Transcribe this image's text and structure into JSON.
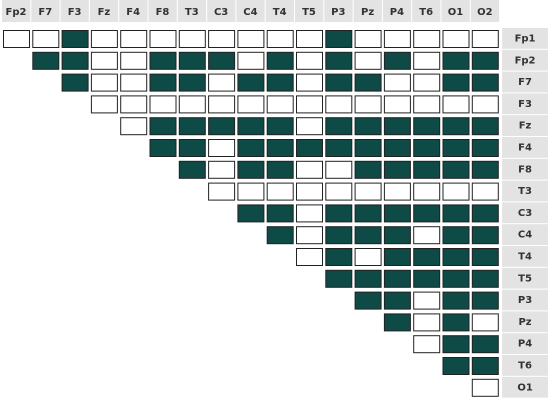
{
  "columns": [
    "Fp2",
    "F7",
    "F3",
    "Fz",
    "F4",
    "F8",
    "T3",
    "C3",
    "C4",
    "T4",
    "T5",
    "P3",
    "Pz",
    "P4",
    "T6",
    "O1",
    "O2"
  ],
  "rows": [
    {
      "label": "Fp1",
      "cells": [
        0,
        0,
        1,
        0,
        0,
        0,
        0,
        0,
        0,
        0,
        0,
        1,
        0,
        0,
        0,
        0,
        0
      ]
    },
    {
      "label": "Fp2",
      "cells": [
        1,
        1,
        0,
        0,
        1,
        1,
        1,
        0,
        1,
        0,
        1,
        0,
        1,
        0,
        1,
        1
      ]
    },
    {
      "label": "F7",
      "cells": [
        1,
        0,
        0,
        1,
        1,
        0,
        1,
        1,
        0,
        1,
        1,
        0,
        0,
        1,
        1
      ]
    },
    {
      "label": "F3",
      "cells": [
        0,
        0,
        0,
        0,
        0,
        0,
        0,
        0,
        0,
        0,
        0,
        0,
        0,
        0
      ]
    },
    {
      "label": "Fz",
      "cells": [
        0,
        1,
        1,
        1,
        1,
        1,
        0,
        1,
        1,
        1,
        1,
        1,
        1
      ]
    },
    {
      "label": "F4",
      "cells": [
        1,
        1,
        0,
        1,
        1,
        1,
        1,
        1,
        1,
        1,
        1,
        1
      ]
    },
    {
      "label": "F8",
      "cells": [
        1,
        0,
        1,
        1,
        0,
        0,
        1,
        1,
        1,
        1,
        1
      ]
    },
    {
      "label": "T3",
      "cells": [
        0,
        0,
        0,
        0,
        0,
        0,
        0,
        0,
        0,
        0
      ]
    },
    {
      "label": "C3",
      "cells": [
        1,
        1,
        0,
        1,
        1,
        1,
        1,
        1,
        1
      ]
    },
    {
      "label": "C4",
      "cells": [
        1,
        0,
        1,
        1,
        1,
        0,
        1,
        1
      ]
    },
    {
      "label": "T4",
      "cells": [
        0,
        1,
        0,
        1,
        1,
        1,
        1
      ]
    },
    {
      "label": "T5",
      "cells": [
        1,
        1,
        1,
        1,
        1,
        1
      ]
    },
    {
      "label": "P3",
      "cells": [
        1,
        1,
        0,
        1,
        1
      ]
    },
    {
      "label": "Pz",
      "cells": [
        1,
        0,
        1,
        0
      ]
    },
    {
      "label": "P4",
      "cells": [
        0,
        1,
        1
      ]
    },
    {
      "label": "T6",
      "cells": [
        1,
        1
      ]
    },
    {
      "label": "O1",
      "cells": [
        0
      ]
    }
  ]
}
